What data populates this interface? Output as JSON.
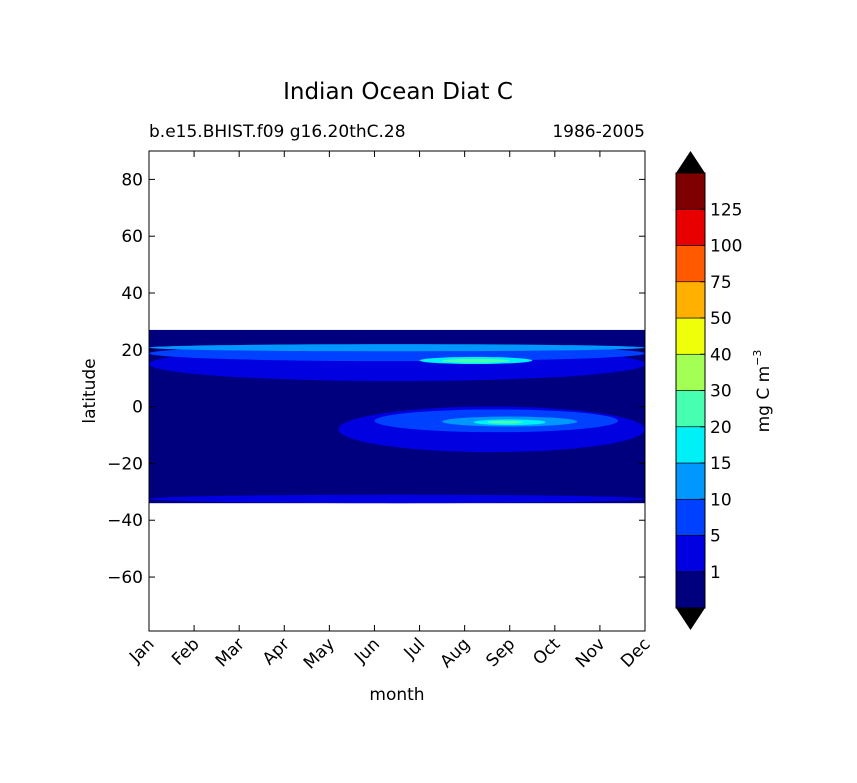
{
  "chart_data": {
    "type": "heatmap",
    "subtype": "filled-contour",
    "title": "Indian Ocean Diat C",
    "subtitle_left": "b.e15.BHIST.f09 g16.20thC.28",
    "subtitle_right": "1986-2005",
    "xlabel": "month",
    "ylabel": "latitude",
    "x_categories": [
      "Jan",
      "Feb",
      "Mar",
      "Apr",
      "May",
      "Jun",
      "Jul",
      "Aug",
      "Sep",
      "Oct",
      "Nov",
      "Dec"
    ],
    "y_ticks": [
      "80",
      "60",
      "40",
      "20",
      "0",
      "−20",
      "−40",
      "−60"
    ],
    "y_tick_values": [
      80,
      60,
      40,
      20,
      0,
      -20,
      -40,
      -60
    ],
    "ylim": [
      -79,
      90
    ],
    "data_lat_range": [
      -34,
      27
    ],
    "colorbar": {
      "label_text": "mg C m",
      "label_exponent": "−3",
      "levels": [
        0,
        1,
        5,
        10,
        15,
        20,
        30,
        40,
        50,
        75,
        100,
        125,
        150
      ],
      "tick_labels": [
        "1",
        "5",
        "10",
        "15",
        "20",
        "30",
        "40",
        "50",
        "75",
        "100",
        "125"
      ],
      "tick_values": [
        1,
        5,
        10,
        15,
        20,
        30,
        40,
        50,
        75,
        100,
        125
      ],
      "colors": [
        "#00007f",
        "#0000e0",
        "#0040ff",
        "#0098ff",
        "#00f0f7",
        "#47ffb0",
        "#a3ff54",
        "#eeff09",
        "#ffb000",
        "#ff5a00",
        "#e80000",
        "#7f0000"
      ],
      "extend": "both",
      "extend_color": "#000000"
    },
    "regions": [
      {
        "name": "band-1-5-south",
        "level": 1,
        "x": [
          0,
          11
        ],
        "lat": [
          -34,
          -31
        ]
      },
      {
        "name": "band-1-5-north",
        "level": 1,
        "x": [
          0,
          11
        ],
        "lat": [
          9,
          21
        ]
      },
      {
        "name": "band-1-5-southeq",
        "level": 1,
        "x": [
          4.2,
          11
        ],
        "lat": [
          -16,
          0
        ]
      },
      {
        "name": "band-5-10-north",
        "level": 2,
        "x": [
          0,
          11
        ],
        "lat": [
          16,
          21.5
        ]
      },
      {
        "name": "band-5-10-southeq",
        "level": 2,
        "x": [
          5,
          10.4
        ],
        "lat": [
          -9,
          -1
        ]
      },
      {
        "name": "band-10-15-north",
        "level": 3,
        "x": [
          0,
          11
        ],
        "lat": [
          19.5,
          22
        ]
      },
      {
        "name": "band-10-15-southeq",
        "level": 3,
        "x": [
          6.5,
          9.5
        ],
        "lat": [
          -7,
          -3.5
        ]
      },
      {
        "name": "band-15-20-north",
        "level": 4,
        "x": [
          6,
          8.5
        ],
        "lat": [
          15,
          17.5
        ]
      },
      {
        "name": "band-15-20-southeq",
        "level": 4,
        "x": [
          7.2,
          8.8
        ],
        "lat": [
          -6.5,
          -4.5
        ]
      },
      {
        "name": "band-20-30-north",
        "level": 5,
        "x": [
          6.5,
          8
        ],
        "lat": [
          15.5,
          16.8
        ]
      },
      {
        "name": "band-20-30-southeq",
        "level": 5,
        "x": [
          7.5,
          8.3
        ],
        "lat": [
          -6,
          -5
        ]
      }
    ]
  }
}
